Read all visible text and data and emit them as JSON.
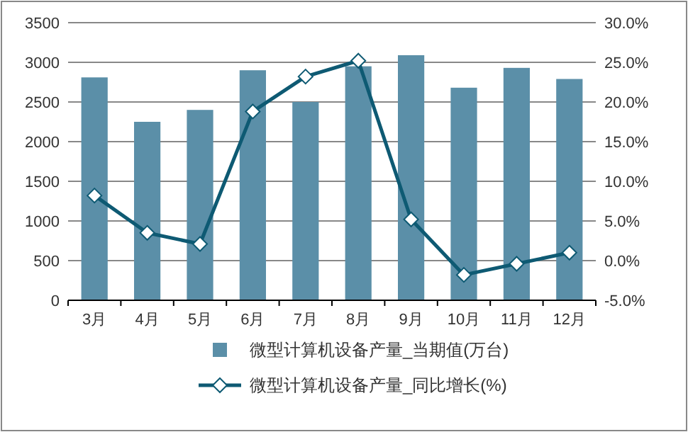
{
  "chart_data": {
    "type": "bar",
    "categories": [
      "3月",
      "4月",
      "5月",
      "6月",
      "7月",
      "8月",
      "9月",
      "10月",
      "11月",
      "12月"
    ],
    "series": [
      {
        "name": "微型计算机设备产量_当期值(万台)",
        "color": "#5b8fa8",
        "values": [
          2810,
          2250,
          2400,
          2900,
          2500,
          2950,
          3090,
          2680,
          2930,
          2790
        ]
      },
      {
        "name": "微型计算机设备产量_同比增长(%)",
        "type": "line",
        "axis": "y2",
        "color": "#0e5a73",
        "marker": "diamond",
        "values": [
          8.2,
          3.5,
          2.1,
          18.8,
          23.2,
          25.2,
          5.2,
          -1.8,
          -0.4,
          1.0
        ]
      }
    ],
    "ylim": [
      0,
      3500
    ],
    "yticks": [
      0,
      500,
      1000,
      1500,
      2000,
      2500,
      3000,
      3500
    ],
    "y2lim": [
      -5,
      30
    ],
    "y2ticks": [
      {
        "value": -5,
        "label": "-5.0%"
      },
      {
        "value": 0,
        "label": "0.0%"
      },
      {
        "value": 5,
        "label": "5.0%"
      },
      {
        "value": 10,
        "label": "10.0%"
      },
      {
        "value": 15,
        "label": "15.0%"
      },
      {
        "value": 20,
        "label": "20.0%"
      },
      {
        "value": 25,
        "label": "25.0%"
      },
      {
        "value": 30,
        "label": "30.0%"
      }
    ],
    "grid": "y",
    "legend": "bottom"
  }
}
